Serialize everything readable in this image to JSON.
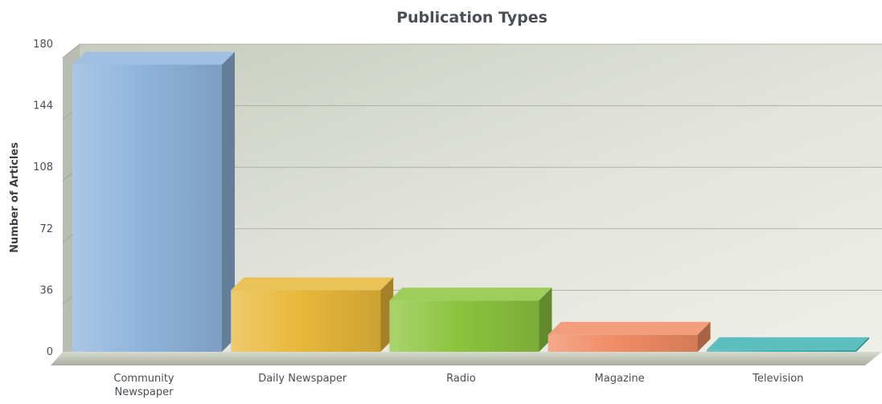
{
  "chart_data": {
    "type": "bar",
    "title": "Publication Types",
    "xlabel": "",
    "ylabel": "Number of Articles",
    "ylim": [
      0,
      180
    ],
    "yticks": [
      "0",
      "36",
      "72",
      "108",
      "144",
      "180"
    ],
    "categories": [
      [
        "Community",
        "Newspaper"
      ],
      [
        "Daily Newspaper"
      ],
      [
        "Radio"
      ],
      [
        "Magazine"
      ],
      [
        "Television"
      ]
    ],
    "values": [
      168,
      36,
      30,
      10,
      1
    ],
    "colors": [
      "#8fb4dc",
      "#e8b83a",
      "#8cc43e",
      "#f08c64",
      "#3fb2b2"
    ],
    "grid": true,
    "legend": "none"
  }
}
